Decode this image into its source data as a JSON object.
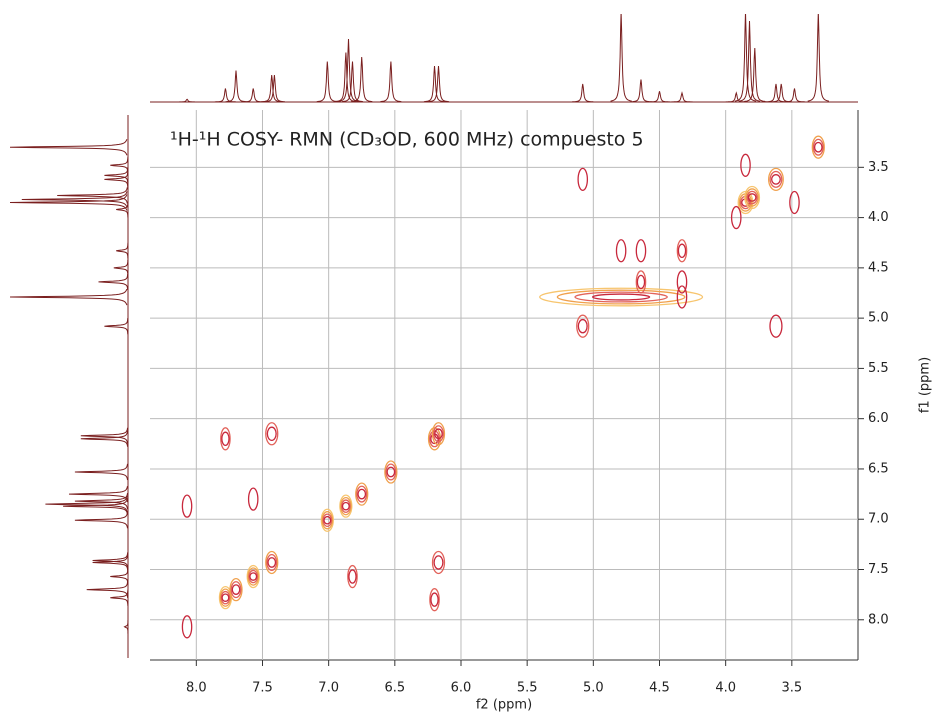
{
  "chart_data": {
    "type": "cosy",
    "title": "¹H-¹H COSY- RMN (CD₃OD, 600 MHz) compuesto 5",
    "x_label": "f2 (ppm)",
    "y_label": "f1 (ppm)",
    "xlim": [
      8.35,
      3.0
    ],
    "ylim": [
      2.93,
      8.4
    ],
    "xticks": [
      {
        "value": 8,
        "label": "8.0"
      },
      7.5,
      {
        "value": 7,
        "label": "7.0"
      },
      6.5,
      {
        "value": 6,
        "label": "6.0"
      },
      5.5,
      {
        "value": 5,
        "label": "5.0"
      },
      4.5,
      {
        "value": 4,
        "label": "4.0"
      },
      3.5
    ],
    "yticks": [
      3.5,
      {
        "value": 4,
        "label": "4.0"
      },
      4.5,
      {
        "value": 5,
        "label": "5.0"
      },
      5.5,
      {
        "value": 6,
        "label": "6.0"
      },
      6.5,
      {
        "value": 7,
        "label": "7.0"
      },
      7.5,
      {
        "value": 8,
        "label": "8.0"
      }
    ],
    "grid": true,
    "level_colors": [
      "#f7c56e",
      "#f0a04c",
      "#e2625a",
      "#c8283c"
    ],
    "projection_color": "#7a1f1f",
    "peaks": {
      "x": [
        7.78,
        7.7,
        7.57,
        7.43,
        7.01,
        6.87,
        6.75,
        6.53,
        6.2,
        6.17,
        5.08,
        4.79,
        4.64,
        4.33,
        3.85,
        3.8,
        3.62,
        3.3,
        8.07,
        8.07,
        7.78,
        7.43,
        7.57,
        6.2,
        6.17,
        6.82,
        5.08,
        3.62,
        4.79,
        4.33,
        4.64,
        4.33,
        3.48,
        3.85,
        3.92
      ],
      "y": [
        7.78,
        7.7,
        7.57,
        7.43,
        7.01,
        6.87,
        6.75,
        6.53,
        6.2,
        6.15,
        5.08,
        4.79,
        4.64,
        4.33,
        3.85,
        3.8,
        3.62,
        3.3,
        8.07,
        6.87,
        6.2,
        6.15,
        6.8,
        7.8,
        7.43,
        7.57,
        3.62,
        5.08,
        4.33,
        4.79,
        4.33,
        4.64,
        3.85,
        3.48,
        4.0
      ],
      "widths": [
        0.03,
        0.03,
        0.03,
        0.03,
        0.03,
        0.03,
        0.03,
        0.03,
        0.03,
        0.03,
        0.03,
        0.6,
        0.02,
        0.02,
        0.04,
        0.04,
        0.04,
        0.03,
        0.02,
        0.02,
        0.02,
        0.03,
        0.02,
        0.02,
        0.03,
        0.02,
        0.02,
        0.03,
        0.02,
        0.02,
        0.02,
        0.02,
        0.02,
        0.02,
        0.02
      ],
      "levels": [
        4,
        3,
        4,
        3,
        4,
        4,
        3,
        3,
        3,
        3,
        2,
        4,
        2,
        2,
        4,
        4,
        3,
        3,
        1,
        1,
        2,
        2,
        1,
        2,
        2,
        2,
        1,
        1,
        1,
        1,
        1,
        1,
        1,
        1,
        1
      ]
    },
    "projection": {
      "shifts": [
        8.07,
        7.78,
        7.7,
        7.57,
        7.43,
        7.41,
        7.01,
        6.87,
        6.85,
        6.82,
        6.75,
        6.53,
        6.2,
        6.17,
        5.08,
        4.79,
        4.64,
        4.5,
        4.33,
        3.92,
        3.85,
        3.82,
        3.78,
        3.62,
        3.58,
        3.48,
        3.3
      ],
      "heights": [
        3,
        15,
        35,
        15,
        30,
        30,
        45,
        55,
        70,
        45,
        50,
        45,
        40,
        40,
        20,
        100,
        25,
        12,
        10,
        10,
        100,
        90,
        60,
        20,
        20,
        15,
        100
      ]
    }
  }
}
